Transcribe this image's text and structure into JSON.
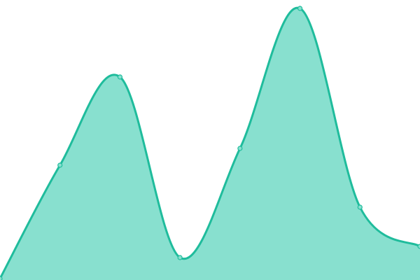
{
  "chart_data": {
    "type": "area",
    "values": [
      0.5,
      41,
      72.5,
      8,
      47,
      97,
      26,
      12
    ],
    "ylim": [
      0,
      100
    ],
    "color": "#1fbc9c",
    "fill_color": "#88e0cf"
  }
}
